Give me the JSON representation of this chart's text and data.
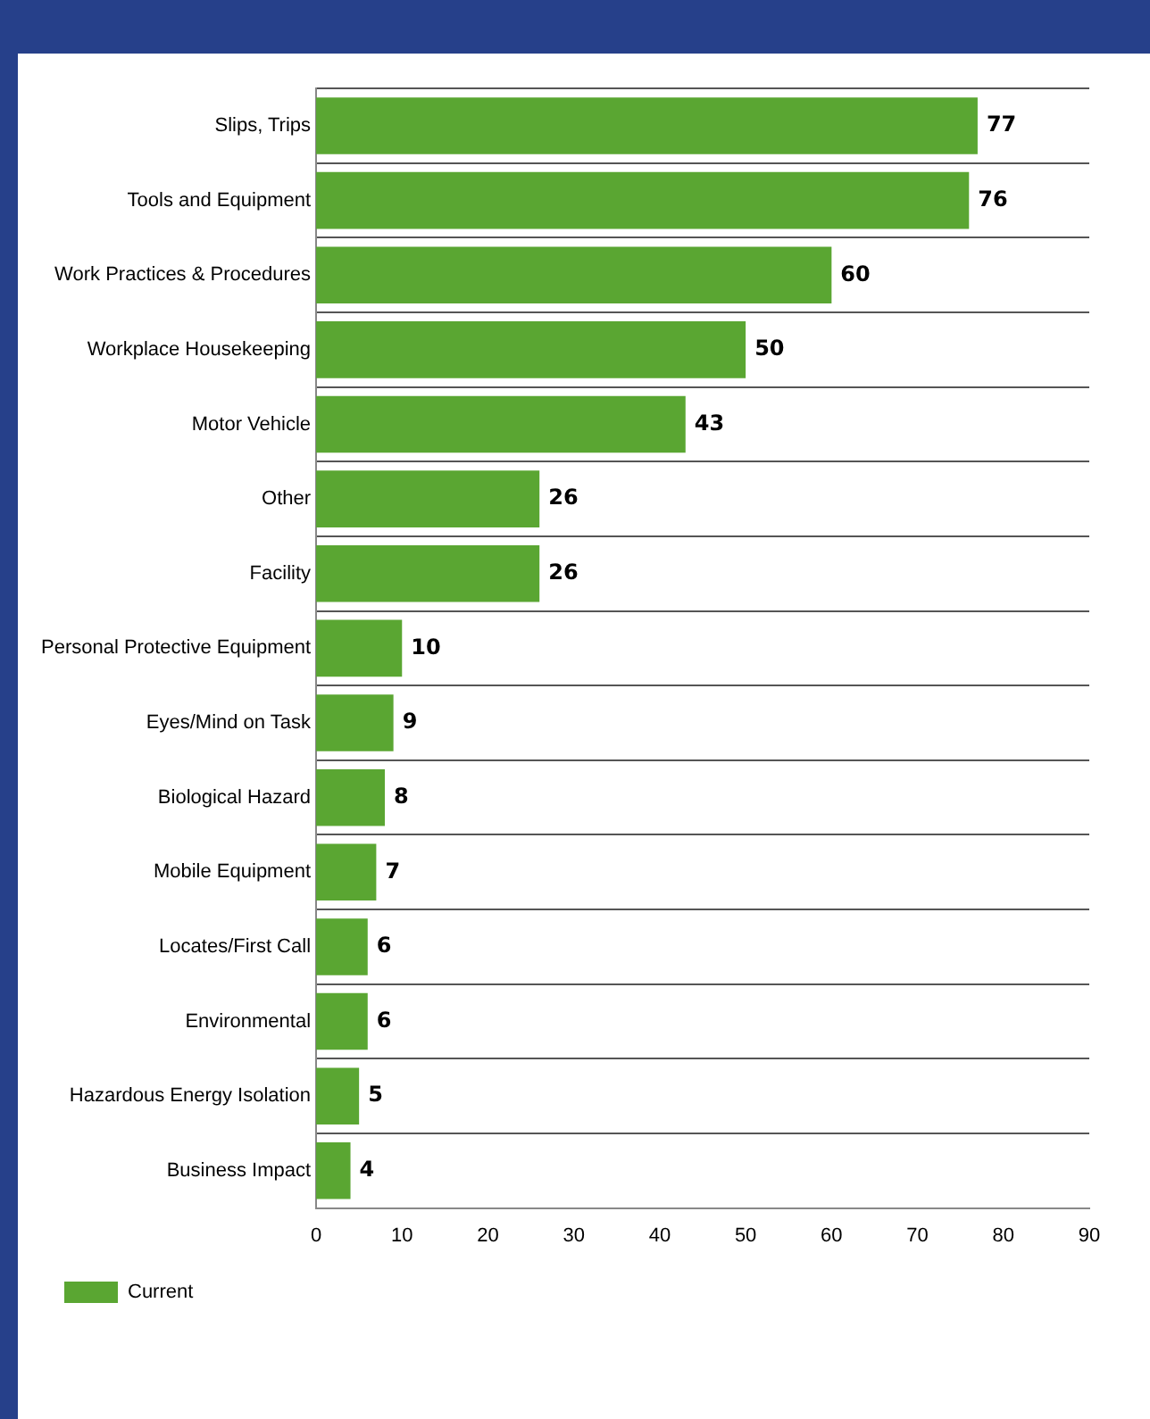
{
  "chart_data": {
    "type": "bar",
    "orientation": "horizontal",
    "categories": [
      "Slips, Trips",
      "Tools and Equipment",
      "Work Practices & Procedures",
      "Workplace Housekeeping",
      "Motor Vehicle",
      "Other",
      "Facility",
      "Personal Protective Equipment",
      "Eyes/Mind on Task",
      "Biological Hazard",
      "Mobile Equipment",
      "Locates/First Call",
      "Environmental",
      "Hazardous Energy Isolation",
      "Business Impact"
    ],
    "series": [
      {
        "name": "Current",
        "color": "#5aa632",
        "values": [
          77,
          76,
          60,
          50,
          43,
          26,
          26,
          10,
          9,
          8,
          7,
          6,
          6,
          5,
          4
        ]
      }
    ],
    "xlim": [
      0,
      90
    ],
    "xticks": [
      0,
      10,
      20,
      30,
      40,
      50,
      60,
      70,
      80,
      90
    ],
    "grid": "y",
    "legend": "bottom left",
    "data_labels": true
  }
}
